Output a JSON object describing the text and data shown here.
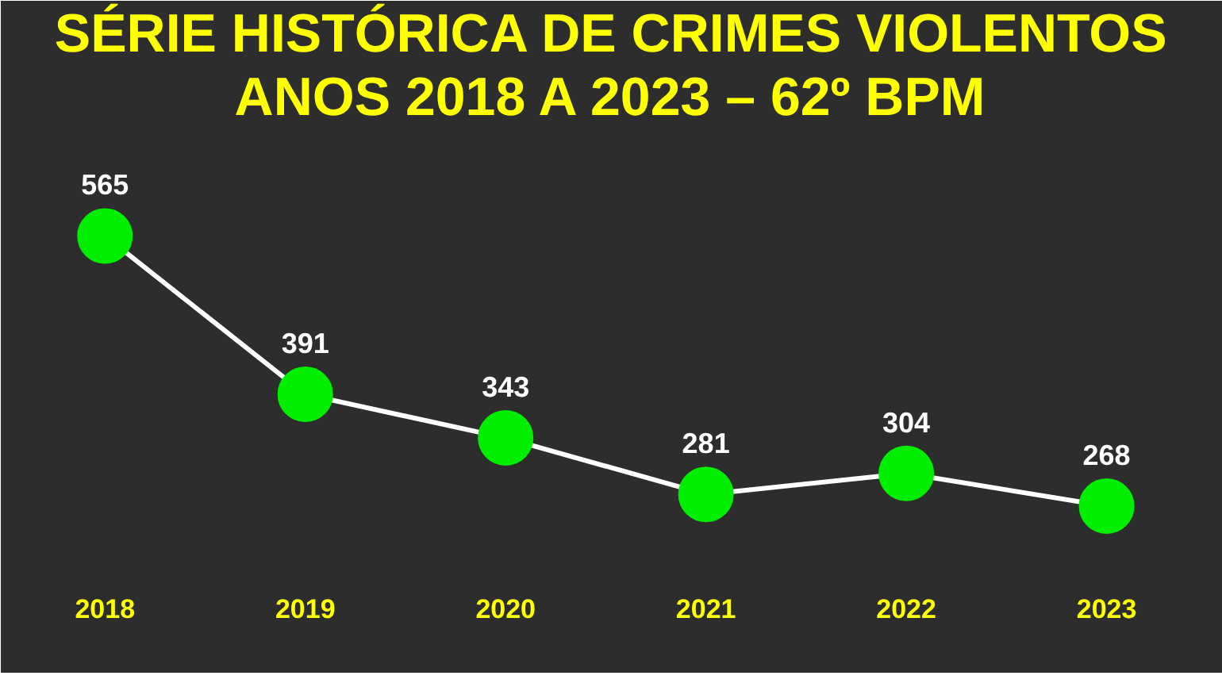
{
  "chart_data": {
    "type": "line",
    "title": "SÉRIE HISTÓRICA DE CRIMES VIOLENTOS",
    "subtitle": "ANOS 2018 A 2023 – 62º BPM",
    "categories": [
      "2018",
      "2019",
      "2020",
      "2021",
      "2022",
      "2023"
    ],
    "series": [
      {
        "color": "#ffffff",
        "colors": [
          "#00ee00",
          "#00ee00",
          "#00ee00",
          "#00ee00",
          "#00ee00",
          "#00ee00"
        ],
        "values": [
          565,
          391,
          343,
          281,
          304,
          268
        ]
      }
    ],
    "ylim": [
      180,
      684
    ],
    "marker": "circle",
    "line_style": "solid",
    "data_labels": true,
    "tick_labels": "x"
  }
}
